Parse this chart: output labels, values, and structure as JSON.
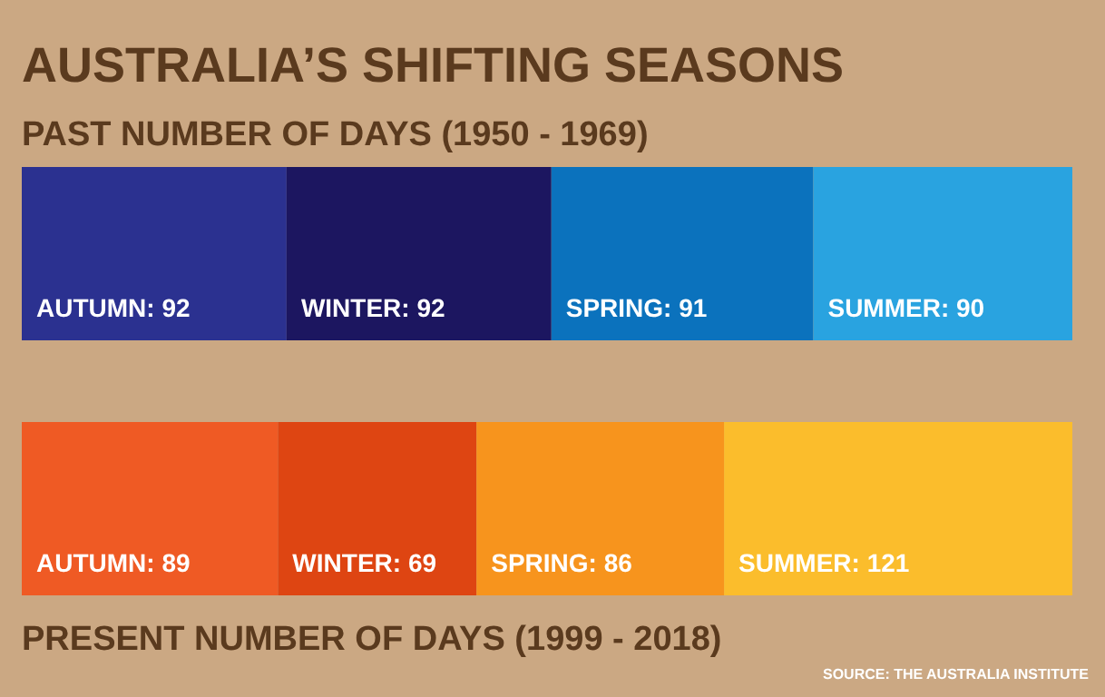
{
  "chart_data": {
    "type": "bar",
    "orientation": "horizontal",
    "stacked": true,
    "title": "AUSTRALIA’S SHIFTING SEASONS",
    "categories": [
      "PAST NUMBER OF DAYS (1950 - 1969)",
      "PRESENT NUMBER OF DAYS (1999 - 2018)"
    ],
    "xlim": [
      0,
      365
    ],
    "tick_labels": false,
    "legend": false,
    "annotations": [
      "SOURCE: THE AUSTRALIA INSTITUTE"
    ],
    "series": [
      {
        "colors": [
          "#2b3190",
          "#ef5a24"
        ],
        "values": [
          92,
          89
        ],
        "value_labels": [
          "AUTUMN: 92",
          "AUTUMN: 89"
        ]
      },
      {
        "colors": [
          "#1c1660",
          "#de4512"
        ],
        "values": [
          92,
          69
        ],
        "value_labels": [
          "WINTER: 92",
          "WINTER: 69"
        ]
      },
      {
        "colors": [
          "#0b72bd",
          "#f7941d"
        ],
        "values": [
          91,
          86
        ],
        "value_labels": [
          "SPRING: 91",
          "SPRING: 86"
        ]
      },
      {
        "colors": [
          "#29a3e0",
          "#fbbd2c"
        ],
        "values": [
          90,
          121
        ],
        "value_labels": [
          "SUMMER: 90",
          "SUMMER: 121"
        ]
      }
    ]
  }
}
